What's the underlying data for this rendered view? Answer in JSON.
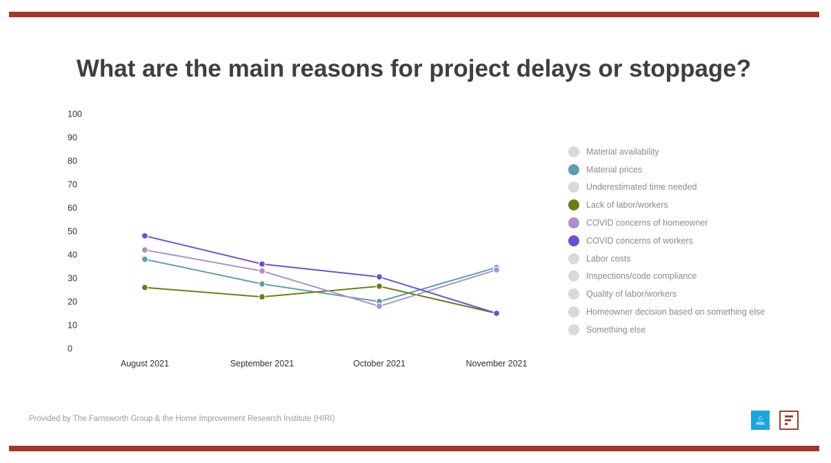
{
  "colors": {
    "frame": "#a3372b",
    "axis_text": "#2f2f2f",
    "inactive_legend": "#d9d9d9",
    "hiri_blue": "#1aa5df",
    "farnsworth_red": "#a03a2c"
  },
  "footer_text": "Provided by The Farnsworth Group & the Home Improvement Research Institute (HIRI)",
  "logos": {
    "hiri_text": "HIRI"
  },
  "chart_data": {
    "type": "line",
    "title": "What are the main reasons for project delays or stoppage?",
    "categories": [
      "August 2021",
      "September 2021",
      "October 2021",
      "November 2021"
    ],
    "ylim": [
      0,
      100
    ],
    "yticks": [
      0,
      10,
      20,
      30,
      40,
      50,
      60,
      70,
      80,
      90,
      100
    ],
    "grid": false,
    "legend_position": "right",
    "series": [
      {
        "name": "Material availability",
        "color": "#d9d9d9",
        "visible": false
      },
      {
        "name": "Material prices",
        "color": "#5d9dac",
        "visible": true,
        "values": [
          38,
          27.5,
          20,
          34.5
        ]
      },
      {
        "name": "Underestimated time needed",
        "color": "#d9d9d9",
        "visible": false
      },
      {
        "name": "Lack of labor/workers",
        "color": "#6b7d14",
        "visible": true,
        "values": [
          26,
          22,
          26.5,
          15
        ]
      },
      {
        "name": "COVID concerns of homeowner",
        "color": "#ac8fcc",
        "visible": true,
        "values": [
          42,
          33,
          18,
          33.5
        ]
      },
      {
        "name": "COVID concerns of workers",
        "color": "#6b4fd8",
        "visible": true,
        "values": [
          48,
          36,
          30.5,
          15
        ]
      },
      {
        "name": "Labor costs",
        "color": "#d9d9d9",
        "visible": false
      },
      {
        "name": "Inspections/code compliance",
        "color": "#d9d9d9",
        "visible": false
      },
      {
        "name": "Quality of labor/workers",
        "color": "#d9d9d9",
        "visible": false
      },
      {
        "name": "Homeowner decision based on something else",
        "color": "#d9d9d9",
        "visible": false
      },
      {
        "name": "Something else",
        "color": "#d9d9d9",
        "visible": false
      }
    ]
  }
}
